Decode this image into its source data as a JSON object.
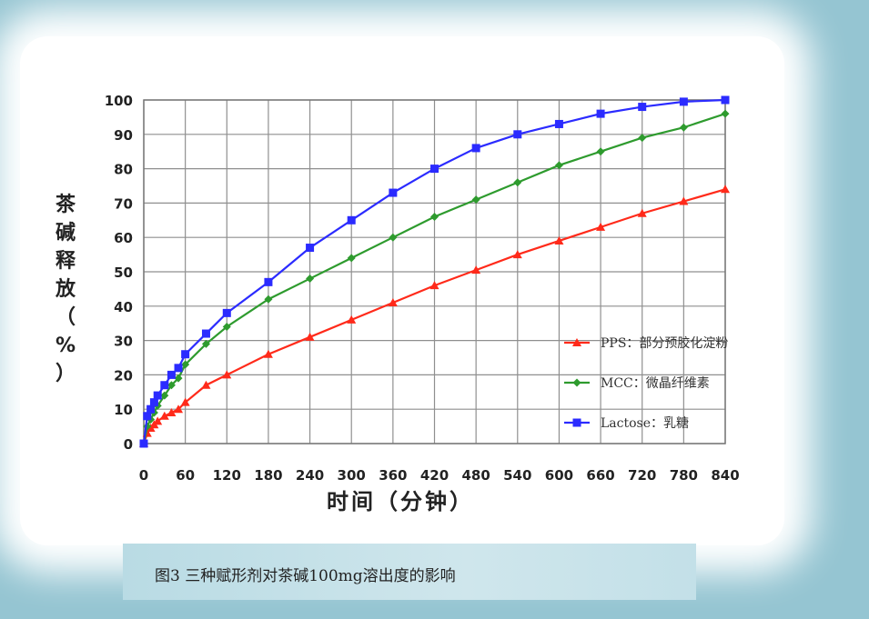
{
  "caption": "图3 三种赋形剂对茶碱100mg溶出度的影响",
  "chart_data": {
    "type": "line",
    "xlabel": "时间（分钟）",
    "ylabel": "茶碱释放（%）",
    "xlim": [
      0,
      840
    ],
    "ylim": [
      0,
      100
    ],
    "x_ticks": [
      "0",
      "60",
      "120",
      "180",
      "240",
      "300",
      "360",
      "420",
      "480",
      "540",
      "600",
      "660",
      "720",
      "780",
      "840"
    ],
    "y_ticks": [
      "0",
      "10",
      "20",
      "30",
      "40",
      "50",
      "60",
      "70",
      "80",
      "90",
      "100"
    ],
    "grid": true,
    "legend_position": "lower-right",
    "series": [
      {
        "name": "PPS：部分预胶化淀粉",
        "color": "#ff2a1a",
        "marker": "triangle",
        "x": [
          0,
          5,
          10,
          15,
          20,
          30,
          40,
          50,
          60,
          90,
          120,
          180,
          240,
          300,
          360,
          420,
          480,
          540,
          600,
          660,
          720,
          780,
          840
        ],
        "y": [
          0,
          3,
          4.5,
          5.5,
          6.5,
          8,
          9,
          10,
          12,
          17,
          20,
          26,
          31,
          36,
          41,
          46,
          50.5,
          55,
          59,
          63,
          67,
          70.5,
          74
        ]
      },
      {
        "name": "MCC：微晶纤维素",
        "color": "#2e9b2e",
        "marker": "diamond",
        "x": [
          0,
          5,
          10,
          15,
          20,
          30,
          40,
          50,
          60,
          90,
          120,
          180,
          240,
          300,
          360,
          420,
          480,
          540,
          600,
          660,
          720,
          780,
          840
        ],
        "y": [
          0,
          5,
          7,
          9,
          11,
          14,
          17,
          19,
          23,
          29,
          34,
          42,
          48,
          54,
          60,
          66,
          71,
          76,
          81,
          85,
          89,
          92,
          96
        ]
      },
      {
        "name": "Lactose：乳糖",
        "color": "#2b2bff",
        "marker": "square",
        "x": [
          0,
          5,
          10,
          15,
          20,
          30,
          40,
          50,
          60,
          90,
          120,
          180,
          240,
          300,
          360,
          420,
          480,
          540,
          600,
          660,
          720,
          780,
          840
        ],
        "y": [
          0,
          8,
          10,
          12,
          14,
          17,
          20,
          22,
          26,
          32,
          38,
          47,
          57,
          65,
          73,
          80,
          86,
          90,
          93,
          96,
          98,
          99.5,
          100
        ]
      }
    ]
  }
}
